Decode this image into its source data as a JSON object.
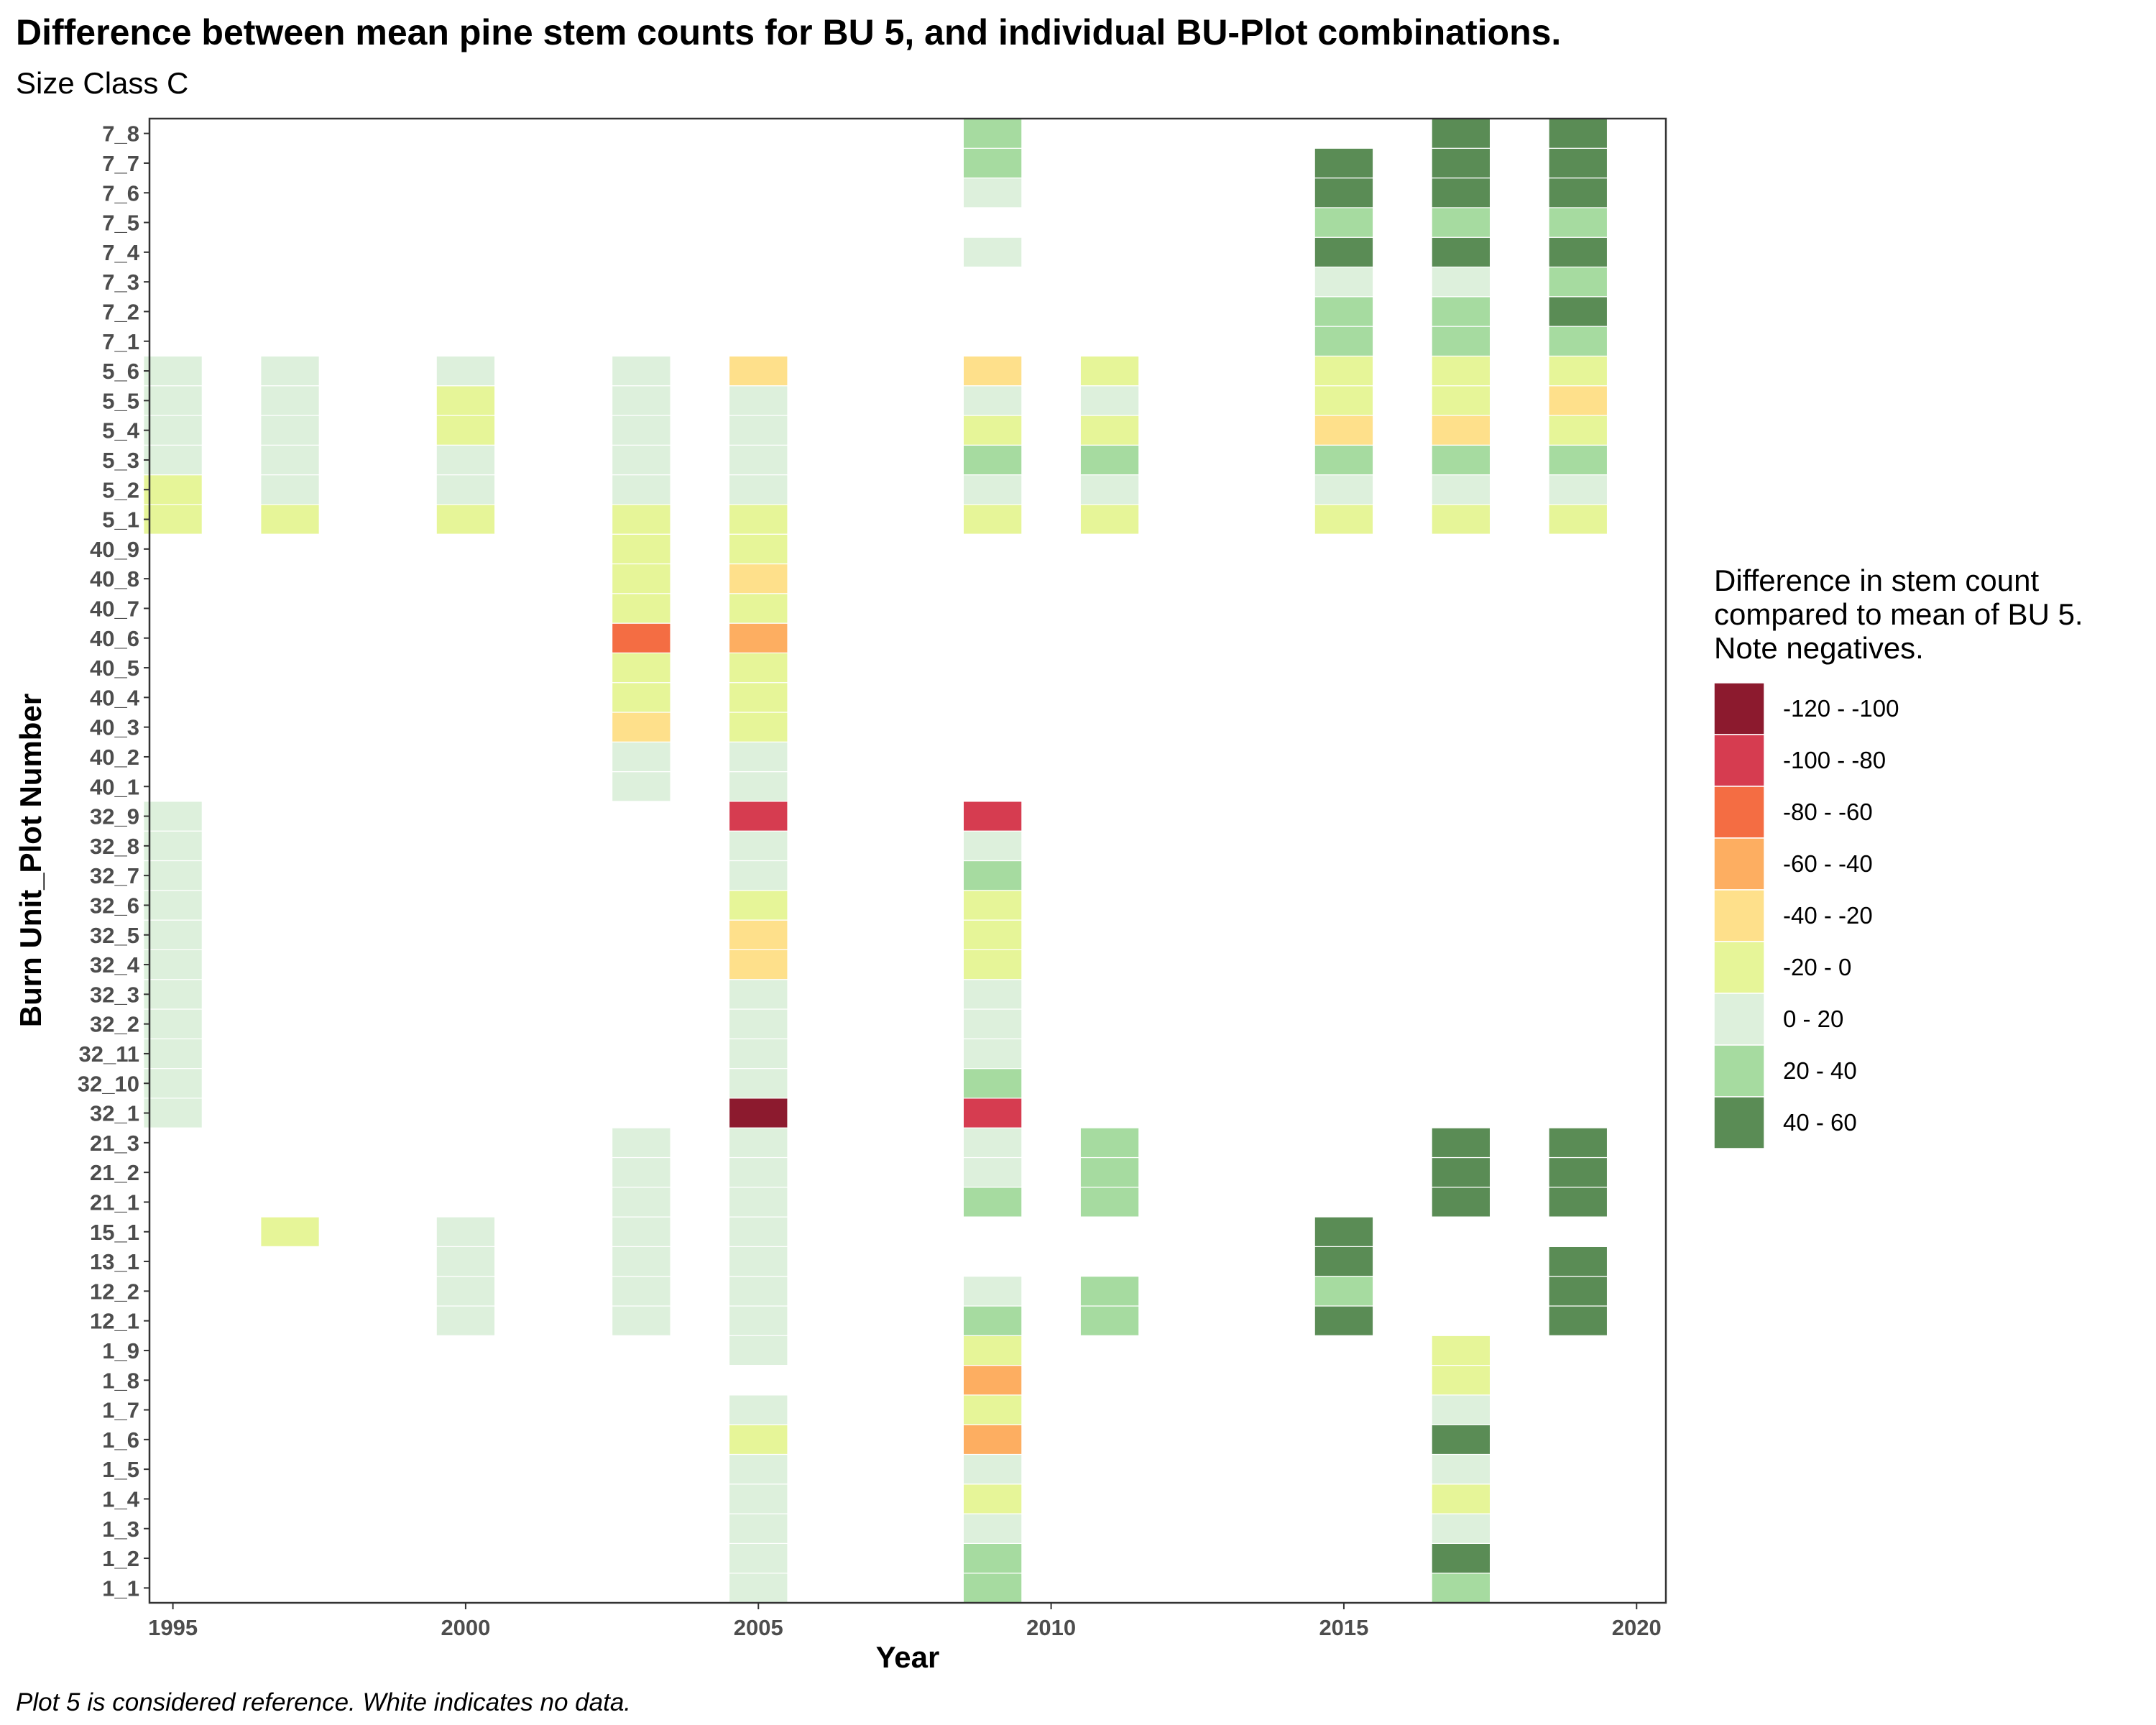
{
  "chart_data": {
    "type": "heatmap",
    "title": "Difference between mean pine stem counts for BU 5, and individual BU-Plot combinations.",
    "subtitle": "Size Class C",
    "xlabel": "Year",
    "ylabel": "Burn Unit_Plot Number",
    "caption": "Plot 5 is considered reference.  White indicates no data.",
    "x_ticks": [
      1995,
      2000,
      2005,
      2010,
      2015,
      2020
    ],
    "xlim": [
      1994.6,
      2020.5
    ],
    "y_categories": [
      "1_1",
      "1_2",
      "1_3",
      "1_4",
      "1_5",
      "1_6",
      "1_7",
      "1_8",
      "1_9",
      "12_1",
      "12_2",
      "13_1",
      "15_1",
      "21_1",
      "21_2",
      "21_3",
      "32_1",
      "32_10",
      "32_11",
      "32_2",
      "32_3",
      "32_4",
      "32_5",
      "32_6",
      "32_7",
      "32_8",
      "32_9",
      "40_1",
      "40_2",
      "40_3",
      "40_4",
      "40_5",
      "40_6",
      "40_7",
      "40_8",
      "40_9",
      "5_1",
      "5_2",
      "5_3",
      "5_4",
      "5_5",
      "5_6",
      "7_1",
      "7_2",
      "7_3",
      "7_4",
      "7_5",
      "7_6",
      "7_7",
      "7_8"
    ],
    "legend": {
      "title": "Difference in stem count\ncompared to mean of BU 5.\nNote negatives.",
      "position": "right",
      "classes": [
        {
          "label": "-120 - -100",
          "color": "#8c1a2e"
        },
        {
          "label": "-100 - -80",
          "color": "#d63c50"
        },
        {
          "label": "-80 - -60",
          "color": "#f46d43"
        },
        {
          "label": "-60 - -40",
          "color": "#fdae61"
        },
        {
          "label": "-40 - -20",
          "color": "#fee08b"
        },
        {
          "label": "-20 - 0",
          "color": "#e6f598"
        },
        {
          "label": "0 - 20",
          "color": "#ddf0dc"
        },
        {
          "label": "20 - 40",
          "color": "#a6dba0"
        },
        {
          "label": "40 - 60",
          "color": "#5a8c55"
        }
      ]
    },
    "columns": [
      {
        "year": 1995,
        "cells": [
          [
            "32_1",
            "0 - 20"
          ],
          [
            "32_10",
            "0 - 20"
          ],
          [
            "32_11",
            "0 - 20"
          ],
          [
            "32_2",
            "0 - 20"
          ],
          [
            "32_3",
            "0 - 20"
          ],
          [
            "32_4",
            "0 - 20"
          ],
          [
            "32_5",
            "0 - 20"
          ],
          [
            "32_6",
            "0 - 20"
          ],
          [
            "32_7",
            "0 - 20"
          ],
          [
            "32_8",
            "0 - 20"
          ],
          [
            "32_9",
            "0 - 20"
          ],
          [
            "5_1",
            "-20 - 0"
          ],
          [
            "5_2",
            "-20 - 0"
          ],
          [
            "5_3",
            "0 - 20"
          ],
          [
            "5_4",
            "0 - 20"
          ],
          [
            "5_5",
            "0 - 20"
          ],
          [
            "5_6",
            "0 - 20"
          ]
        ]
      },
      {
        "year": 1997,
        "cells": [
          [
            "15_1",
            "-20 - 0"
          ],
          [
            "5_1",
            "-20 - 0"
          ],
          [
            "5_2",
            "0 - 20"
          ],
          [
            "5_3",
            "0 - 20"
          ],
          [
            "5_4",
            "0 - 20"
          ],
          [
            "5_5",
            "0 - 20"
          ],
          [
            "5_6",
            "0 - 20"
          ]
        ]
      },
      {
        "year": 2000,
        "cells": [
          [
            "12_1",
            "0 - 20"
          ],
          [
            "12_2",
            "0 - 20"
          ],
          [
            "13_1",
            "0 - 20"
          ],
          [
            "15_1",
            "0 - 20"
          ],
          [
            "5_1",
            "-20 - 0"
          ],
          [
            "5_2",
            "0 - 20"
          ],
          [
            "5_3",
            "0 - 20"
          ],
          [
            "5_4",
            "-20 - 0"
          ],
          [
            "5_5",
            "-20 - 0"
          ],
          [
            "5_6",
            "0 - 20"
          ]
        ]
      },
      {
        "year": 2003,
        "cells": [
          [
            "12_1",
            "0 - 20"
          ],
          [
            "12_2",
            "0 - 20"
          ],
          [
            "13_1",
            "0 - 20"
          ],
          [
            "15_1",
            "0 - 20"
          ],
          [
            "21_1",
            "0 - 20"
          ],
          [
            "21_2",
            "0 - 20"
          ],
          [
            "21_3",
            "0 - 20"
          ],
          [
            "40_1",
            "0 - 20"
          ],
          [
            "40_2",
            "0 - 20"
          ],
          [
            "40_3",
            "-40 - -20"
          ],
          [
            "40_4",
            "-20 - 0"
          ],
          [
            "40_5",
            "-20 - 0"
          ],
          [
            "40_6",
            "-80 - -60"
          ],
          [
            "40_7",
            "-20 - 0"
          ],
          [
            "40_8",
            "-20 - 0"
          ],
          [
            "40_9",
            "-20 - 0"
          ],
          [
            "5_1",
            "-20 - 0"
          ],
          [
            "5_2",
            "0 - 20"
          ],
          [
            "5_3",
            "0 - 20"
          ],
          [
            "5_4",
            "0 - 20"
          ],
          [
            "5_5",
            "0 - 20"
          ],
          [
            "5_6",
            "0 - 20"
          ]
        ]
      },
      {
        "year": 2005,
        "cells": [
          [
            "1_1",
            "0 - 20"
          ],
          [
            "1_2",
            "0 - 20"
          ],
          [
            "1_3",
            "0 - 20"
          ],
          [
            "1_4",
            "0 - 20"
          ],
          [
            "1_5",
            "0 - 20"
          ],
          [
            "1_6",
            "-20 - 0"
          ],
          [
            "1_7",
            "0 - 20"
          ],
          [
            "1_9",
            "0 - 20"
          ],
          [
            "12_1",
            "0 - 20"
          ],
          [
            "12_2",
            "0 - 20"
          ],
          [
            "13_1",
            "0 - 20"
          ],
          [
            "15_1",
            "0 - 20"
          ],
          [
            "21_1",
            "0 - 20"
          ],
          [
            "21_2",
            "0 - 20"
          ],
          [
            "21_3",
            "0 - 20"
          ],
          [
            "32_1",
            "-120 - -100"
          ],
          [
            "32_10",
            "0 - 20"
          ],
          [
            "32_11",
            "0 - 20"
          ],
          [
            "32_2",
            "0 - 20"
          ],
          [
            "32_3",
            "0 - 20"
          ],
          [
            "32_4",
            "-40 - -20"
          ],
          [
            "32_5",
            "-40 - -20"
          ],
          [
            "32_6",
            "-20 - 0"
          ],
          [
            "32_7",
            "0 - 20"
          ],
          [
            "32_8",
            "0 - 20"
          ],
          [
            "32_9",
            "-100 - -80"
          ],
          [
            "40_1",
            "0 - 20"
          ],
          [
            "40_2",
            "0 - 20"
          ],
          [
            "40_3",
            "-20 - 0"
          ],
          [
            "40_4",
            "-20 - 0"
          ],
          [
            "40_5",
            "-20 - 0"
          ],
          [
            "40_6",
            "-60 - -40"
          ],
          [
            "40_7",
            "-20 - 0"
          ],
          [
            "40_8",
            "-40 - -20"
          ],
          [
            "40_9",
            "-20 - 0"
          ],
          [
            "5_1",
            "-20 - 0"
          ],
          [
            "5_2",
            "0 - 20"
          ],
          [
            "5_3",
            "0 - 20"
          ],
          [
            "5_4",
            "0 - 20"
          ],
          [
            "5_5",
            "0 - 20"
          ],
          [
            "5_6",
            "-40 - -20"
          ]
        ]
      },
      {
        "year": 2009,
        "cells": [
          [
            "1_1",
            "20 - 40"
          ],
          [
            "1_2",
            "20 - 40"
          ],
          [
            "1_3",
            "0 - 20"
          ],
          [
            "1_4",
            "-20 - 0"
          ],
          [
            "1_5",
            "0 - 20"
          ],
          [
            "1_6",
            "-60 - -40"
          ],
          [
            "1_7",
            "-20 - 0"
          ],
          [
            "1_8",
            "-60 - -40"
          ],
          [
            "1_9",
            "-20 - 0"
          ],
          [
            "12_1",
            "20 - 40"
          ],
          [
            "12_2",
            "0 - 20"
          ],
          [
            "21_1",
            "20 - 40"
          ],
          [
            "21_2",
            "0 - 20"
          ],
          [
            "21_3",
            "0 - 20"
          ],
          [
            "32_1",
            "-100 - -80"
          ],
          [
            "32_10",
            "20 - 40"
          ],
          [
            "32_11",
            "0 - 20"
          ],
          [
            "32_2",
            "0 - 20"
          ],
          [
            "32_3",
            "0 - 20"
          ],
          [
            "32_4",
            "-20 - 0"
          ],
          [
            "32_5",
            "-20 - 0"
          ],
          [
            "32_6",
            "-20 - 0"
          ],
          [
            "32_7",
            "20 - 40"
          ],
          [
            "32_8",
            "0 - 20"
          ],
          [
            "32_9",
            "-100 - -80"
          ],
          [
            "5_1",
            "-20 - 0"
          ],
          [
            "5_2",
            "0 - 20"
          ],
          [
            "5_3",
            "20 - 40"
          ],
          [
            "5_4",
            "-20 - 0"
          ],
          [
            "5_5",
            "0 - 20"
          ],
          [
            "5_6",
            "-40 - -20"
          ],
          [
            "7_4",
            "0 - 20"
          ],
          [
            "7_6",
            "0 - 20"
          ],
          [
            "7_7",
            "20 - 40"
          ],
          [
            "7_8",
            "20 - 40"
          ]
        ]
      },
      {
        "year": 2011,
        "cells": [
          [
            "12_1",
            "20 - 40"
          ],
          [
            "12_2",
            "20 - 40"
          ],
          [
            "21_1",
            "20 - 40"
          ],
          [
            "21_2",
            "20 - 40"
          ],
          [
            "21_3",
            "20 - 40"
          ],
          [
            "5_1",
            "-20 - 0"
          ],
          [
            "5_2",
            "0 - 20"
          ],
          [
            "5_3",
            "20 - 40"
          ],
          [
            "5_4",
            "-20 - 0"
          ],
          [
            "5_5",
            "0 - 20"
          ],
          [
            "5_6",
            "-20 - 0"
          ]
        ]
      },
      {
        "year": 2015,
        "cells": [
          [
            "12_1",
            "40 - 60"
          ],
          [
            "12_2",
            "20 - 40"
          ],
          [
            "13_1",
            "40 - 60"
          ],
          [
            "15_1",
            "40 - 60"
          ],
          [
            "5_1",
            "-20 - 0"
          ],
          [
            "5_2",
            "0 - 20"
          ],
          [
            "5_3",
            "20 - 40"
          ],
          [
            "5_4",
            "-40 - -20"
          ],
          [
            "5_5",
            "-20 - 0"
          ],
          [
            "5_6",
            "-20 - 0"
          ],
          [
            "7_1",
            "20 - 40"
          ],
          [
            "7_2",
            "20 - 40"
          ],
          [
            "7_3",
            "0 - 20"
          ],
          [
            "7_4",
            "40 - 60"
          ],
          [
            "7_5",
            "20 - 40"
          ],
          [
            "7_6",
            "40 - 60"
          ],
          [
            "7_7",
            "40 - 60"
          ]
        ]
      },
      {
        "year": 2017,
        "cells": [
          [
            "1_1",
            "20 - 40"
          ],
          [
            "1_2",
            "40 - 60"
          ],
          [
            "1_3",
            "0 - 20"
          ],
          [
            "1_4",
            "-20 - 0"
          ],
          [
            "1_5",
            "0 - 20"
          ],
          [
            "1_6",
            "40 - 60"
          ],
          [
            "1_7",
            "0 - 20"
          ],
          [
            "1_8",
            "-20 - 0"
          ],
          [
            "1_9",
            "-20 - 0"
          ],
          [
            "21_1",
            "40 - 60"
          ],
          [
            "21_2",
            "40 - 60"
          ],
          [
            "21_3",
            "40 - 60"
          ],
          [
            "5_1",
            "-20 - 0"
          ],
          [
            "5_2",
            "0 - 20"
          ],
          [
            "5_3",
            "20 - 40"
          ],
          [
            "5_4",
            "-40 - -20"
          ],
          [
            "5_5",
            "-20 - 0"
          ],
          [
            "5_6",
            "-20 - 0"
          ],
          [
            "7_1",
            "20 - 40"
          ],
          [
            "7_2",
            "20 - 40"
          ],
          [
            "7_3",
            "0 - 20"
          ],
          [
            "7_4",
            "40 - 60"
          ],
          [
            "7_5",
            "20 - 40"
          ],
          [
            "7_6",
            "40 - 60"
          ],
          [
            "7_7",
            "40 - 60"
          ],
          [
            "7_8",
            "40 - 60"
          ]
        ]
      },
      {
        "year": 2019,
        "cells": [
          [
            "12_1",
            "40 - 60"
          ],
          [
            "12_2",
            "40 - 60"
          ],
          [
            "13_1",
            "40 - 60"
          ],
          [
            "21_1",
            "40 - 60"
          ],
          [
            "21_2",
            "40 - 60"
          ],
          [
            "21_3",
            "40 - 60"
          ],
          [
            "5_1",
            "-20 - 0"
          ],
          [
            "5_2",
            "0 - 20"
          ],
          [
            "5_3",
            "20 - 40"
          ],
          [
            "5_4",
            "-20 - 0"
          ],
          [
            "5_5",
            "-40 - -20"
          ],
          [
            "5_6",
            "-20 - 0"
          ],
          [
            "7_1",
            "20 - 40"
          ],
          [
            "7_2",
            "40 - 60"
          ],
          [
            "7_3",
            "20 - 40"
          ],
          [
            "7_4",
            "40 - 60"
          ],
          [
            "7_5",
            "20 - 40"
          ],
          [
            "7_6",
            "40 - 60"
          ],
          [
            "7_7",
            "40 - 60"
          ],
          [
            "7_8",
            "40 - 60"
          ]
        ]
      }
    ]
  }
}
